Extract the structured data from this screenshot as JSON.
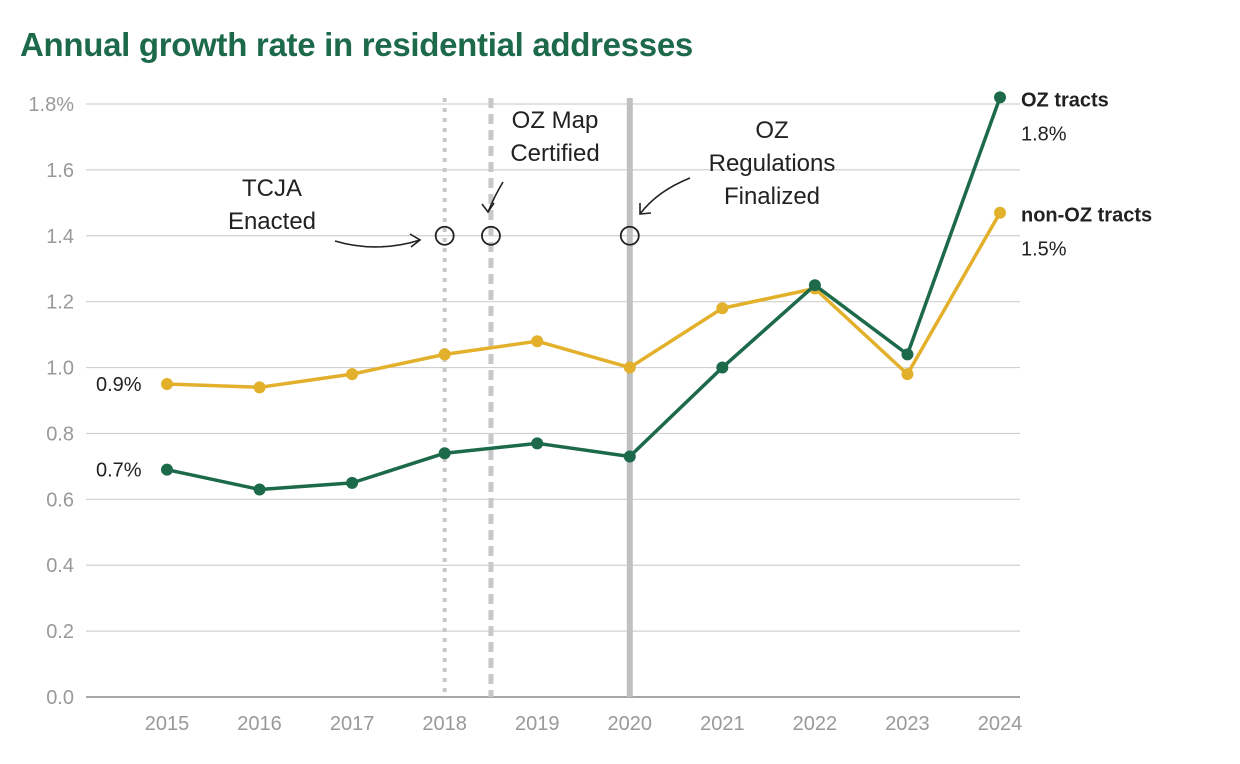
{
  "chart_data": {
    "type": "line",
    "title": "Annual growth rate in residential addresses",
    "xlabel": "",
    "ylabel": "",
    "x": [
      2015,
      2016,
      2017,
      2018,
      2019,
      2020,
      2021,
      2022,
      2023,
      2024
    ],
    "x_tick_labels": [
      "2015",
      "2016",
      "2017",
      "2018",
      "2019",
      "2020",
      "2021",
      "2022",
      "2023",
      "2024"
    ],
    "ylim": [
      0,
      1.8
    ],
    "y_ticks": [
      0,
      0.2,
      0.4,
      0.6,
      0.8,
      1.0,
      1.2,
      1.4,
      1.6,
      1.8
    ],
    "y_tick_labels": [
      "0.0",
      "0.2",
      "0.4",
      "0.6",
      "0.8",
      "1.0",
      "1.2",
      "1.4",
      "1.6",
      "1.8%"
    ],
    "grid": true,
    "series": [
      {
        "name": "OZ tracts",
        "color": "#1d6a4b",
        "end_label": "1.8%",
        "start_label": "0.7%",
        "values": [
          0.69,
          0.63,
          0.65,
          0.74,
          0.77,
          0.73,
          1.0,
          1.25,
          1.04,
          1.82
        ]
      },
      {
        "name": "non-OZ tracts",
        "color": "#e3b02b",
        "end_label": "1.5%",
        "start_label": "0.9%",
        "values": [
          0.95,
          0.94,
          0.98,
          1.04,
          1.08,
          1.0,
          1.18,
          1.24,
          0.98,
          1.47
        ]
      }
    ],
    "events": [
      {
        "x": 2018.0,
        "style": "dotted",
        "lines": [
          "TCJA",
          "Enacted"
        ]
      },
      {
        "x": 2018.5,
        "style": "dashed",
        "lines": [
          "OZ Map",
          "Certified"
        ]
      },
      {
        "x": 2020.0,
        "style": "solid",
        "lines": [
          "OZ",
          "Regulations",
          "Finalized"
        ]
      }
    ],
    "event_marker_y": 1.4
  }
}
